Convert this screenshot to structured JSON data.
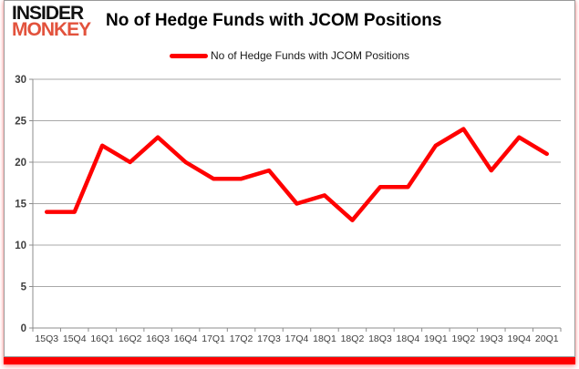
{
  "brand": {
    "line1": "INSIDER",
    "line2": "MONKEY"
  },
  "header": {
    "title": "No of Hedge Funds with JCOM Positions"
  },
  "legend": {
    "label": "No of Hedge Funds with JCOM Positions"
  },
  "colors": {
    "line": "#ff0000",
    "accent_bar": "#ff0000",
    "brand_accent": "#e2523c",
    "gridline": "#a8a8a8",
    "axis": "#8c8c8c",
    "tick_label": "#3f3f3f"
  },
  "chart_data": {
    "type": "line",
    "title": "No of Hedge Funds with JCOM Positions",
    "categories": [
      "15Q3",
      "15Q4",
      "16Q1",
      "16Q2",
      "16Q3",
      "16Q4",
      "17Q1",
      "17Q2",
      "17Q3",
      "17Q4",
      "18Q1",
      "18Q2",
      "18Q3",
      "18Q4",
      "19Q1",
      "19Q2",
      "19Q3",
      "19Q4",
      "20Q1"
    ],
    "series": [
      {
        "name": "No of Hedge Funds with JCOM Positions",
        "values": [
          14,
          14,
          22,
          20,
          23,
          20,
          18,
          18,
          19,
          15,
          16,
          13,
          17,
          17,
          22,
          24,
          19,
          23,
          21
        ]
      }
    ],
    "xlabel": "",
    "ylabel": "",
    "ylim": [
      0,
      30
    ],
    "yticks": [
      0,
      5,
      10,
      15,
      20,
      25,
      30
    ],
    "grid": true,
    "legend_position": "top-center",
    "line_color": "#ff0000"
  }
}
